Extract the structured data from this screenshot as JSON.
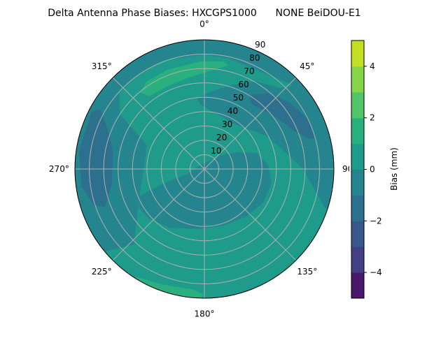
{
  "chart_data": {
    "type": "polar-contour",
    "title": "Delta Antenna Phase Biases: HXCGPS1000      NONE BeiDOU-E1",
    "angle_direction": "clockwise",
    "angle_zero": "top",
    "angle_ticks": [
      "0°",
      "45°",
      "90°",
      "135°",
      "180°",
      "225°",
      "270°",
      "315°"
    ],
    "radial_ticks": [
      "10",
      "20",
      "30",
      "40",
      "50",
      "60",
      "70",
      "80",
      "90"
    ],
    "rmax": 90,
    "grid": true,
    "colorbar": {
      "label": "Bias (mm)",
      "levels": [
        -5,
        -4,
        -3,
        -2,
        -1,
        0,
        1,
        2,
        3,
        4,
        5
      ],
      "colors": [
        "#48186a",
        "#433e85",
        "#38588c",
        "#2d708e",
        "#25858e",
        "#1e9b8a",
        "#2ab07f",
        "#52c569",
        "#86d549",
        "#c2df23"
      ],
      "ticks": [
        "−4",
        "−2",
        "0",
        "2",
        "4"
      ],
      "tick_values": [
        -4,
        -2,
        0,
        2,
        4
      ]
    },
    "background_level": [
      0,
      1
    ],
    "regions": [
      {
        "level": [
          -1,
          0
        ],
        "points": [
          [
            232,
            95
          ],
          [
            260,
            95
          ],
          [
            290,
            95
          ],
          [
            320,
            95
          ],
          [
            350,
            95
          ],
          [
            20,
            95
          ],
          [
            50,
            95
          ],
          [
            80,
            95
          ],
          [
            108,
            95
          ],
          [
            108,
            88
          ],
          [
            90,
            68.6
          ],
          [
            81,
            59.5
          ],
          [
            63,
            49.5
          ],
          [
            32,
            37.6
          ],
          [
            356.4,
            45
          ],
          [
            354,
            49.3
          ],
          [
            4,
            54
          ],
          [
            18.7,
            62
          ],
          [
            30.6,
            71
          ],
          [
            43,
            77
          ],
          [
            46.6,
            85
          ],
          [
            27.5,
            78
          ],
          [
            12,
            79
          ],
          [
            0,
            79.7
          ],
          [
            339,
            81
          ],
          [
            323,
            80
          ],
          [
            312,
            79.7
          ],
          [
            303,
            70
          ],
          [
            293,
            43.6
          ],
          [
            274,
            41.8
          ],
          [
            249.6,
            47.9
          ],
          [
            223,
            71.7
          ],
          [
            227.7,
            82.6
          ],
          [
            230,
            89
          ]
        ]
      },
      {
        "level": [
          -1,
          0
        ],
        "points": [
          [
            253.5,
            13
          ],
          [
            315,
            3.9
          ],
          [
            48,
            13.7
          ],
          [
            63,
            26
          ],
          [
            73,
            37.7
          ],
          [
            86,
            44.3
          ],
          [
            102,
            47.8
          ],
          [
            119.5,
            47.1
          ],
          [
            138,
            44.3
          ],
          [
            161,
            41.6
          ],
          [
            184,
            41.9
          ],
          [
            210,
            47.4
          ],
          [
            228,
            51.6
          ],
          [
            238,
            52.9
          ],
          [
            247,
            50.6
          ],
          [
            248.5,
            41.3
          ],
          [
            251,
            26.8
          ]
        ]
      },
      {
        "level": [
          -2,
          -1
        ],
        "points": [
          [
            31,
            60
          ],
          [
            40,
            69
          ],
          [
            51.6,
            75
          ],
          [
            64,
            80
          ],
          [
            74,
            80
          ],
          [
            74.3,
            76
          ],
          [
            66.5,
            67.6
          ],
          [
            53,
            61
          ],
          [
            36,
            55.7
          ]
        ]
      },
      {
        "level": [
          -2,
          -1
        ],
        "points": [
          [
            297,
            88
          ],
          [
            300,
            83.6
          ],
          [
            293,
            73.4
          ],
          [
            281,
            64.7
          ],
          [
            261,
            65.1
          ],
          [
            249,
            74
          ],
          [
            252,
            81
          ],
          [
            262,
            86.2
          ],
          [
            278,
            88
          ]
        ]
      },
      {
        "level": [
          1,
          2
        ],
        "points": [
          [
            320,
            69.5
          ],
          [
            326.8,
            73
          ],
          [
            340,
            73.7
          ],
          [
            358,
            75
          ],
          [
            10.2,
            76
          ],
          [
            13,
            74.3
          ],
          [
            5.8,
            69.6
          ],
          [
            352,
            65
          ],
          [
            336,
            63.2
          ],
          [
            323,
            63.5
          ]
        ]
      },
      {
        "level": [
          1,
          2
        ],
        "points": [
          [
            212.7,
            89
          ],
          [
            199.6,
            85.6
          ],
          [
            185,
            84.3
          ],
          [
            180.7,
            87.2
          ],
          [
            182,
            95
          ],
          [
            210,
            95
          ]
        ]
      }
    ]
  }
}
